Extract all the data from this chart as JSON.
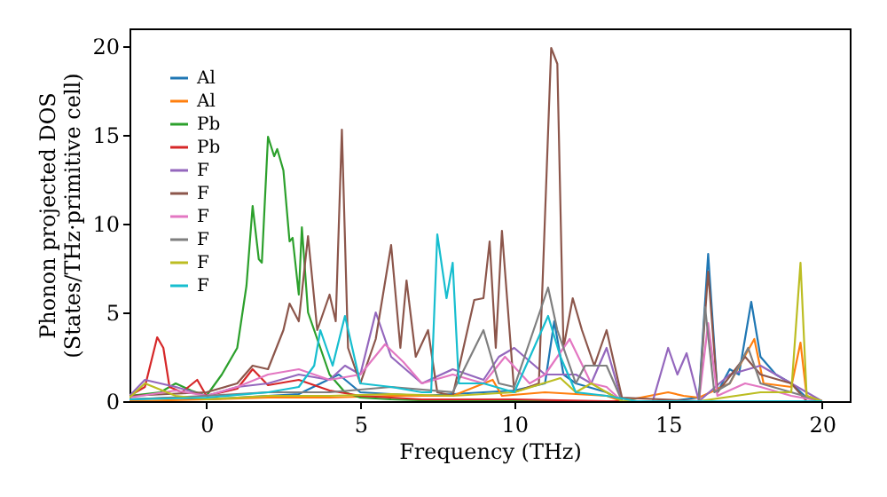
{
  "chart_data": {
    "type": "line",
    "xlabel": "Frequency (THz)",
    "ylabel": "Phonon projected DOS\n(States/THz·primitive cell)",
    "xlim": [
      -2.5,
      20.9
    ],
    "ylim": [
      0,
      21
    ],
    "xticks": [
      0,
      5,
      10,
      15,
      20
    ],
    "yticks": [
      0,
      5,
      10,
      15,
      20
    ],
    "grid": false,
    "legend": "top left",
    "marker": "none",
    "line_style": "solid",
    "series": [
      {
        "name": "Al",
        "color": "#1f77b4",
        "x": [
          -2.5,
          -1,
          0,
          1,
          2,
          3,
          4.3,
          5,
          6,
          7,
          8,
          9,
          10,
          11,
          11.3,
          11.6,
          12,
          13,
          13.5,
          15,
          16,
          16.3,
          16.6,
          17,
          17.3,
          17.7,
          18,
          18.5,
          19,
          19.5,
          20
        ],
        "values": [
          0.1,
          0.2,
          0.1,
          0.2,
          0.3,
          0.4,
          1.5,
          0.5,
          0.4,
          0.3,
          0.4,
          0.5,
          0.6,
          1.0,
          4.5,
          1.5,
          1.0,
          0.5,
          0,
          0,
          0.2,
          8.3,
          0.5,
          1.8,
          1.5,
          5.6,
          2.5,
          1.5,
          1.0,
          0.2,
          0
        ]
      },
      {
        "name": "Al",
        "color": "#ff7f0e",
        "x": [
          -2.5,
          0,
          2,
          4,
          6,
          8,
          9.3,
          9.6,
          11,
          12,
          13,
          13.5,
          15,
          15.5,
          16,
          17,
          17.8,
          18.1,
          19,
          19.3,
          19.5,
          20
        ],
        "values": [
          0,
          0.1,
          0.2,
          0.2,
          0.3,
          0.3,
          1.2,
          0.3,
          0.5,
          0.4,
          0.3,
          0,
          0.5,
          0.3,
          0.2,
          1.0,
          3.5,
          1.0,
          0.8,
          3.3,
          0.3,
          0
        ]
      },
      {
        "name": "Pb",
        "color": "#2ca02c",
        "x": [
          -2.5,
          -1.5,
          -1,
          -0.5,
          0,
          0.5,
          1.0,
          1.3,
          1.5,
          1.7,
          1.8,
          2.0,
          2.2,
          2.3,
          2.5,
          2.7,
          2.8,
          3.0,
          3.1,
          3.3,
          3.6,
          4.0,
          4.5,
          5,
          6,
          8,
          10,
          13,
          20
        ],
        "values": [
          0.3,
          0.5,
          1.0,
          0.6,
          0.3,
          1.5,
          3.0,
          6.5,
          11.0,
          8.0,
          7.8,
          14.9,
          13.8,
          14.2,
          13.0,
          9.0,
          9.2,
          6.0,
          9.8,
          5.0,
          3.5,
          1.5,
          0.5,
          0.2,
          0.1,
          0,
          0,
          0,
          0
        ]
      },
      {
        "name": "Pb",
        "color": "#d62728",
        "x": [
          -2.5,
          -2,
          -1.6,
          -1.4,
          -1.2,
          -0.8,
          -0.3,
          0,
          1,
          1.5,
          2,
          3,
          4,
          5,
          7,
          10,
          13,
          20
        ],
        "values": [
          0.3,
          0.8,
          3.6,
          3.0,
          0.8,
          0.5,
          1.2,
          0.3,
          0.7,
          1.8,
          0.9,
          1.2,
          0.6,
          0.3,
          0.1,
          0.1,
          0,
          0
        ]
      },
      {
        "name": "F",
        "color": "#9467bd",
        "x": [
          -2.5,
          -2,
          -1,
          0,
          1,
          2,
          3,
          4,
          4.5,
          5,
          5.5,
          6,
          7,
          8,
          9,
          9.5,
          10,
          11,
          12,
          12.5,
          13,
          13.5,
          14.5,
          15,
          15.3,
          15.6,
          16,
          17,
          18,
          19,
          20
        ],
        "values": [
          0.3,
          1.2,
          0.8,
          0.3,
          0.8,
          1.0,
          1.5,
          1.2,
          2.0,
          1.5,
          5.0,
          2.5,
          1.0,
          1.8,
          1.2,
          2.5,
          3.0,
          1.5,
          1.5,
          1.0,
          3.0,
          0,
          0,
          3.0,
          1.5,
          2.7,
          0,
          1.5,
          2.0,
          1.0,
          0
        ]
      },
      {
        "name": "F",
        "color": "#8c564b",
        "x": [
          -2.5,
          0,
          1,
          1.5,
          2,
          2.5,
          2.7,
          3.0,
          3.3,
          3.6,
          4.0,
          4.2,
          4.4,
          4.6,
          5,
          5.5,
          6,
          6.3,
          6.5,
          6.8,
          7.2,
          7.5,
          8,
          8.7,
          9.0,
          9.2,
          9.4,
          9.6,
          10,
          10.8,
          11.2,
          11.4,
          11.6,
          11.9,
          12.2,
          12.6,
          13,
          13.5,
          16,
          16.3,
          16.6,
          17.5,
          18,
          19,
          19.5,
          20
        ],
        "values": [
          0.3,
          0.5,
          1.0,
          2.0,
          1.8,
          4.0,
          5.5,
          4.5,
          9.3,
          4.0,
          6.0,
          4.5,
          15.3,
          3.0,
          1.0,
          3.5,
          8.8,
          3.0,
          6.8,
          2.5,
          4.0,
          0.5,
          0.3,
          5.7,
          5.8,
          9.0,
          3.0,
          9.6,
          0.5,
          1.0,
          19.9,
          19.0,
          3.0,
          5.8,
          4.0,
          2.0,
          4.0,
          0.2,
          0,
          7.3,
          0.5,
          2.5,
          1.5,
          1.0,
          0,
          0
        ]
      },
      {
        "name": "F",
        "color": "#e377c2",
        "x": [
          -2.5,
          -1,
          0,
          1,
          2,
          3,
          4,
          5,
          5.8,
          6.4,
          7,
          8,
          9,
          9.7,
          10.5,
          11,
          11.8,
          12.5,
          13,
          13.5,
          16,
          16.3,
          16.6,
          17.5,
          18,
          19,
          20
        ],
        "values": [
          0.2,
          0.6,
          0.3,
          0.8,
          1.5,
          1.8,
          1.2,
          1.5,
          3.2,
          2.2,
          1.0,
          1.5,
          1.0,
          2.5,
          1.0,
          1.5,
          3.5,
          1.0,
          0.8,
          0,
          0,
          4.4,
          0.3,
          1.0,
          0.8,
          0.3,
          0
        ]
      },
      {
        "name": "F",
        "color": "#7f7f7f",
        "x": [
          -2.5,
          0,
          2,
          4,
          6,
          8,
          9,
          9.5,
          10,
          11.1,
          11.4,
          12,
          12.3,
          13,
          13.5,
          16,
          16.2,
          16.5,
          17,
          17.6,
          18,
          19,
          20
        ],
        "values": [
          0.1,
          0.3,
          0.5,
          0.5,
          0.8,
          0.5,
          4.0,
          1.0,
          0.8,
          6.4,
          4.0,
          1.0,
          2.0,
          2.0,
          0,
          0,
          5.3,
          0.5,
          1.0,
          3.0,
          1.0,
          0.5,
          0
        ]
      },
      {
        "name": "F",
        "color": "#bcbd22",
        "x": [
          -2.5,
          -2,
          -1,
          0,
          2,
          4,
          6,
          8,
          10,
          11.5,
          12,
          12.5,
          13,
          13.5,
          16,
          18,
          19,
          19.3,
          19.5,
          20
        ],
        "values": [
          0.2,
          1.0,
          0.3,
          0.1,
          0.3,
          0.3,
          0.4,
          0.3,
          0.5,
          1.3,
          0.5,
          1.0,
          0.5,
          0,
          0,
          0.5,
          0.5,
          7.8,
          0.3,
          0
        ]
      },
      {
        "name": "F",
        "color": "#17becf",
        "x": [
          -2.5,
          0,
          2,
          3,
          3.5,
          3.7,
          4.1,
          4.5,
          5,
          6,
          7,
          7.3,
          7.5,
          7.8,
          8,
          8.2,
          9,
          10,
          11.1,
          11.5,
          12,
          13,
          14,
          20
        ],
        "values": [
          0.1,
          0.2,
          0.5,
          0.8,
          2.0,
          4.0,
          2.0,
          4.8,
          1.0,
          0.8,
          0.5,
          0.5,
          9.4,
          5.8,
          7.8,
          1.0,
          1.0,
          0.5,
          4.8,
          2.5,
          0.5,
          0.3,
          0,
          0
        ]
      }
    ]
  }
}
